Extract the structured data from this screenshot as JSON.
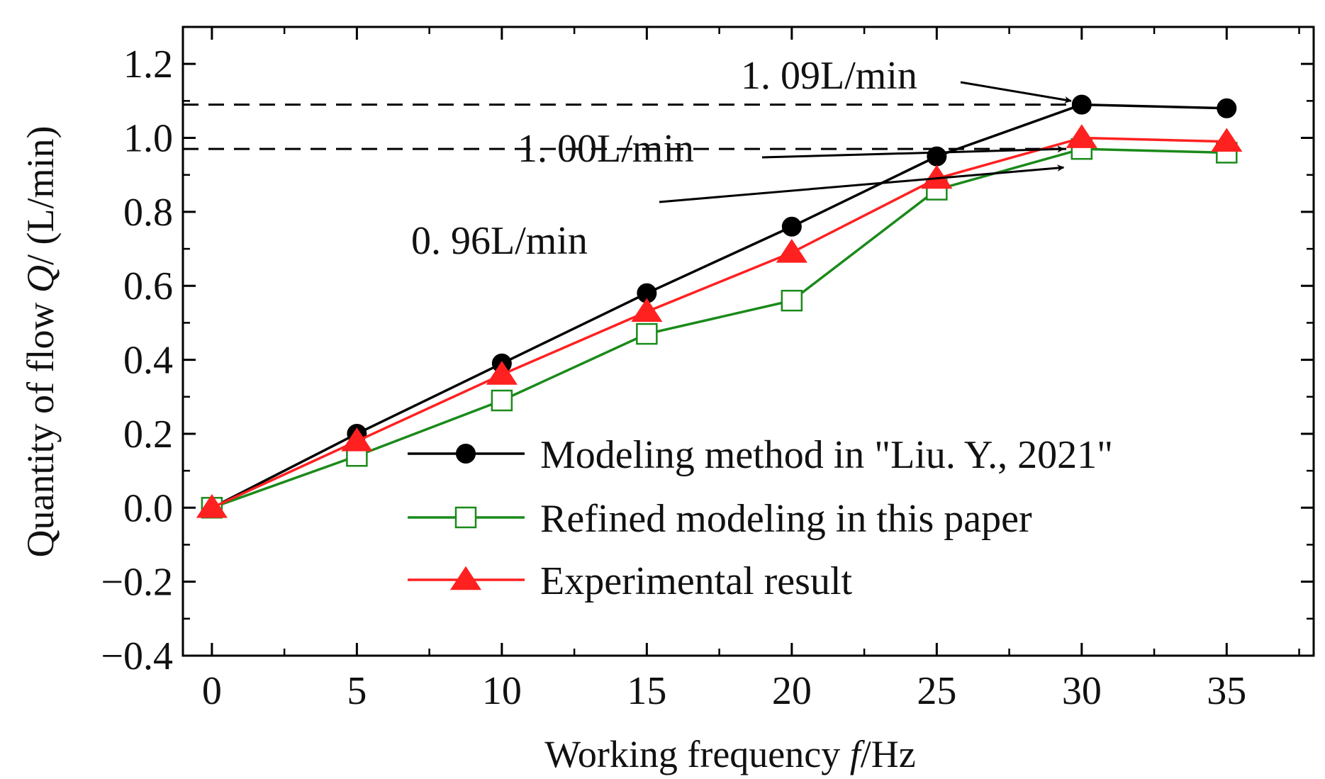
{
  "chart_data": {
    "type": "line",
    "xlabel": "Working frequency",
    "xlabel_var": "f",
    "xlabel_unit": "/Hz",
    "ylabel": "Quantity of flow",
    "ylabel_var": "Q",
    "ylabel_unit": "/ (L/min)",
    "xlim": [
      -1,
      38
    ],
    "ylim": [
      -0.4,
      1.3
    ],
    "xticks": [
      0,
      5,
      10,
      15,
      20,
      25,
      30,
      35
    ],
    "yticks": [
      -0.4,
      -0.2,
      0.0,
      0.2,
      0.4,
      0.6,
      0.8,
      1.0,
      1.2
    ],
    "ytick_labels": [
      "−0.4",
      "−0.2",
      "0.0",
      "0.2",
      "0.4",
      "0.6",
      "0.8",
      "1.0",
      "1.2"
    ],
    "x": [
      0,
      5,
      10,
      15,
      20,
      25,
      30,
      35
    ],
    "series": [
      {
        "name": "Modeling method in \"Liu. Y., 2021\"",
        "color": "#000000",
        "marker": "circle",
        "values": [
          0.0,
          0.2,
          0.39,
          0.58,
          0.76,
          0.95,
          1.09,
          1.08
        ]
      },
      {
        "name": "Refined modeling in this paper",
        "color": "#1a8a1a",
        "marker": "square-open",
        "values": [
          0.0,
          0.14,
          0.29,
          0.47,
          0.56,
          0.86,
          0.97,
          0.96
        ]
      },
      {
        "name": "Experimental result",
        "color": "#ff2020",
        "marker": "triangle",
        "values": [
          0.0,
          0.18,
          0.36,
          0.53,
          0.69,
          0.89,
          1.0,
          0.99
        ]
      }
    ],
    "reference_lines": [
      {
        "y": 1.09,
        "style": "dashed"
      },
      {
        "y": 0.97,
        "style": "dashed"
      }
    ],
    "annotations": [
      {
        "text": "1. 09L/min",
        "x": 18.2,
        "y": 1.1,
        "arrow_to": [
          30,
          1.1
        ]
      },
      {
        "text": "1. 00L/min",
        "x": 10.5,
        "y": 0.96,
        "arrow_to": [
          29.5,
          0.97
        ]
      },
      {
        "text": "0. 96L/min",
        "x": 6.9,
        "y": 0.69,
        "arrow_to": [
          29.5,
          0.92
        ]
      }
    ],
    "legend_position": "lower-right"
  }
}
